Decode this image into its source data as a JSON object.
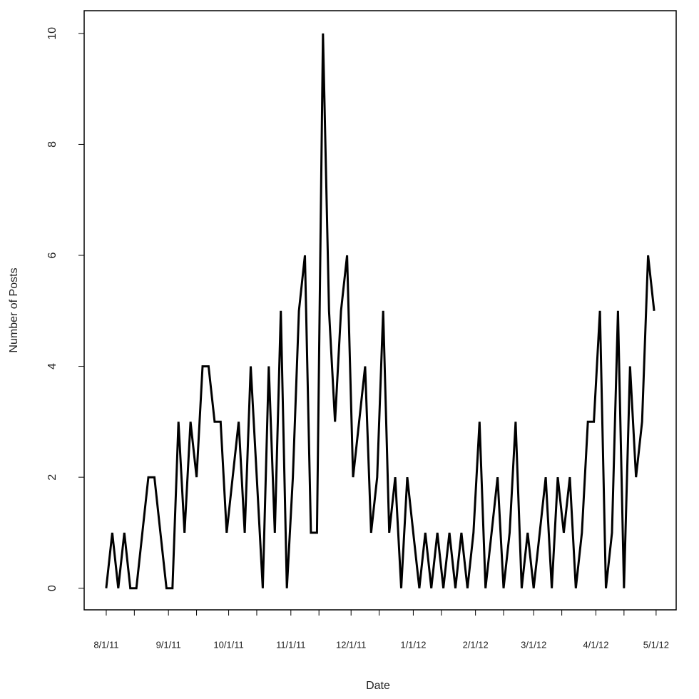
{
  "chart_data": {
    "type": "line",
    "x_label": "Date",
    "y_label": "Number of Posts",
    "x": [
      "2011-08-01",
      "2011-08-04",
      "2011-08-07",
      "2011-08-10",
      "2011-08-13",
      "2011-08-16",
      "2011-08-19",
      "2011-08-22",
      "2011-08-25",
      "2011-08-28",
      "2011-08-31",
      "2011-09-03",
      "2011-09-06",
      "2011-09-09",
      "2011-09-12",
      "2011-09-15",
      "2011-09-18",
      "2011-09-21",
      "2011-09-24",
      "2011-09-27",
      "2011-09-30",
      "2011-10-03",
      "2011-10-06",
      "2011-10-09",
      "2011-10-12",
      "2011-10-15",
      "2011-10-18",
      "2011-10-21",
      "2011-10-24",
      "2011-10-27",
      "2011-10-30",
      "2011-11-02",
      "2011-11-05",
      "2011-11-08",
      "2011-11-11",
      "2011-11-14",
      "2011-11-17",
      "2011-11-20",
      "2011-11-23",
      "2011-11-26",
      "2011-11-29",
      "2011-12-02",
      "2011-12-05",
      "2011-12-08",
      "2011-12-11",
      "2011-12-14",
      "2011-12-17",
      "2011-12-20",
      "2011-12-23",
      "2011-12-26",
      "2011-12-29",
      "2012-01-01",
      "2012-01-04",
      "2012-01-07",
      "2012-01-10",
      "2012-01-13",
      "2012-01-16",
      "2012-01-19",
      "2012-01-22",
      "2012-01-25",
      "2012-01-28",
      "2012-01-31",
      "2012-02-03",
      "2012-02-06",
      "2012-02-09",
      "2012-02-12",
      "2012-02-15",
      "2012-02-18",
      "2012-02-21",
      "2012-02-24",
      "2012-02-27",
      "2012-03-01",
      "2012-03-04",
      "2012-03-07",
      "2012-03-10",
      "2012-03-13",
      "2012-03-16",
      "2012-03-19",
      "2012-03-22",
      "2012-03-25",
      "2012-03-28",
      "2012-03-31",
      "2012-04-03",
      "2012-04-06",
      "2012-04-09",
      "2012-04-12",
      "2012-04-15",
      "2012-04-18",
      "2012-04-21",
      "2012-04-24",
      "2012-04-27",
      "2012-04-30"
    ],
    "series": [
      {
        "name": "Posts",
        "color": "#000000",
        "values": [
          0,
          1,
          0,
          1,
          0,
          0,
          1,
          2,
          2,
          1,
          0,
          0,
          3,
          1,
          3,
          2,
          4,
          4,
          3,
          3,
          1,
          2,
          3,
          1,
          4,
          2,
          0,
          4,
          1,
          5,
          0,
          2,
          5,
          6,
          1,
          1,
          10,
          5,
          3,
          5,
          6,
          2,
          3,
          4,
          1,
          2,
          5,
          1,
          2,
          0,
          2,
          1,
          0,
          1,
          0,
          1,
          0,
          1,
          0,
          1,
          0,
          1,
          3,
          0,
          1,
          2,
          0,
          1,
          3,
          0,
          1,
          0,
          1,
          2,
          0,
          2,
          1,
          2,
          0,
          1,
          3,
          3,
          5,
          0,
          1,
          5,
          0,
          4,
          2,
          3,
          6,
          5
        ]
      }
    ],
    "xlim": [
      "2011-07-21",
      "2012-05-11"
    ],
    "xticks": [
      {
        "value": "2011-08-01",
        "label": "8/1/11"
      },
      {
        "value": "2011-09-01",
        "label": "9/1/11"
      },
      {
        "value": "2011-10-01",
        "label": "10/1/11"
      },
      {
        "value": "2011-11-01",
        "label": "11/1/11"
      },
      {
        "value": "2011-12-01",
        "label": "12/1/11"
      },
      {
        "value": "2012-01-01",
        "label": "1/1/12"
      },
      {
        "value": "2012-02-01",
        "label": "2/1/12"
      },
      {
        "value": "2012-03-01",
        "label": "3/1/12"
      },
      {
        "value": "2012-04-01",
        "label": "4/1/12"
      },
      {
        "value": "2012-05-01",
        "label": "5/1/12"
      }
    ],
    "xminorticks": [
      "2011-08-15",
      "2011-09-15",
      "2011-10-15",
      "2011-11-15",
      "2011-12-15",
      "2012-01-15",
      "2012-02-15",
      "2012-03-15",
      "2012-04-15"
    ],
    "ylim": [
      -0.39,
      10.41
    ],
    "yticks": [
      0,
      2,
      4,
      6,
      8,
      10
    ],
    "grid": false
  }
}
